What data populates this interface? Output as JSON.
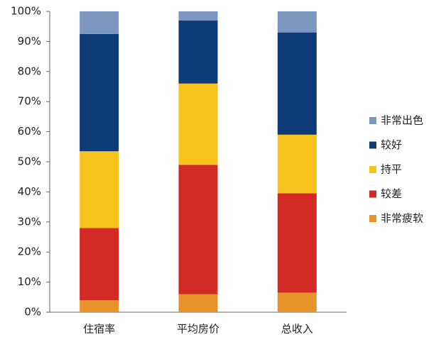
{
  "chart_data": {
    "type": "stacked_bar",
    "categories": [
      "住宿率",
      "平均房价",
      "总收入"
    ],
    "series": [
      {
        "name": "非常疲软",
        "color": "#e8922a",
        "values": [
          4,
          6,
          6.5
        ]
      },
      {
        "name": "较差",
        "color": "#d42a25",
        "values": [
          24,
          43,
          33
        ]
      },
      {
        "name": "持平",
        "color": "#f8c21c",
        "values": [
          25.5,
          27,
          19.5
        ]
      },
      {
        "name": "较好",
        "color": "#0e3b78",
        "values": [
          39,
          21,
          34
        ]
      },
      {
        "name": "非常出色",
        "color": "#7b96bf",
        "values": [
          7.5,
          3,
          7
        ]
      }
    ],
    "ylim": [
      0,
      100
    ],
    "yticks": [
      {
        "value": 0,
        "label": "0%"
      },
      {
        "value": 10,
        "label": "10%"
      },
      {
        "value": 20,
        "label": "20%"
      },
      {
        "value": 30,
        "label": "30%"
      },
      {
        "value": 40,
        "label": "40%"
      },
      {
        "value": 50,
        "label": "50%"
      },
      {
        "value": 60,
        "label": "60%"
      },
      {
        "value": 70,
        "label": "70%"
      },
      {
        "value": 80,
        "label": "80%"
      },
      {
        "value": 90,
        "label": "90%"
      },
      {
        "value": 100,
        "label": "100%"
      }
    ],
    "legend": "right"
  }
}
